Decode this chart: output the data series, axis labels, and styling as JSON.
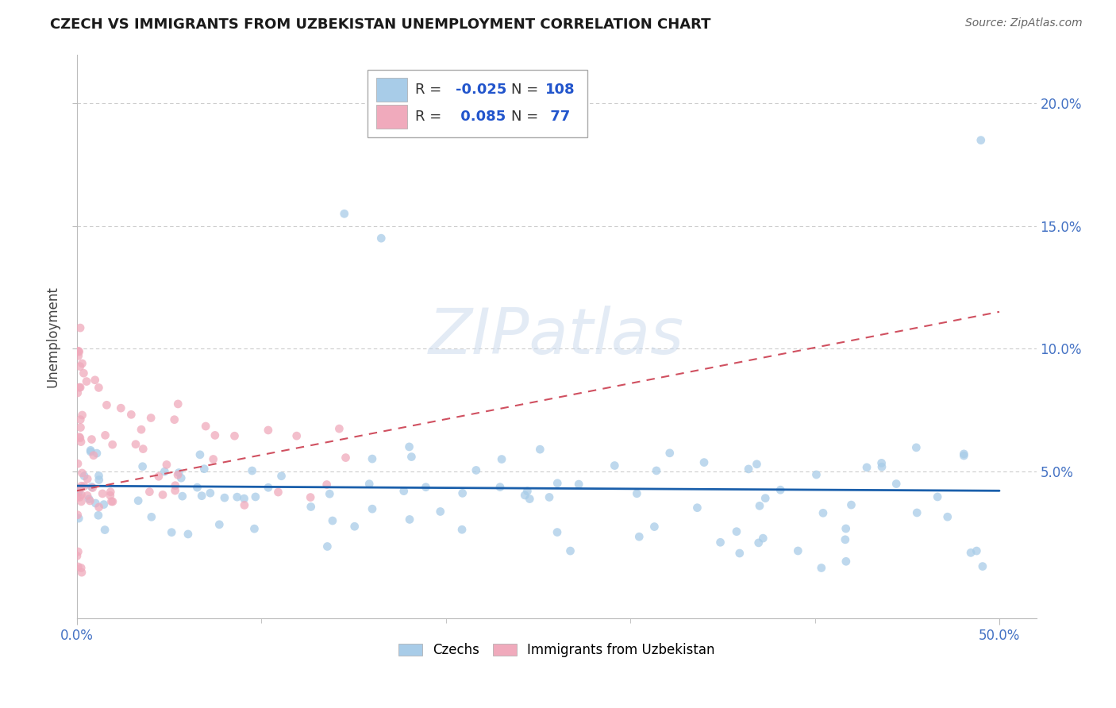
{
  "title": "CZECH VS IMMIGRANTS FROM UZBEKISTAN UNEMPLOYMENT CORRELATION CHART",
  "source": "Source: ZipAtlas.com",
  "ylabel": "Unemployment",
  "xlim": [
    0.0,
    0.52
  ],
  "ylim": [
    -0.01,
    0.22
  ],
  "ytick_vals": [
    0.05,
    0.1,
    0.15,
    0.2
  ],
  "ytick_labels": [
    "5.0%",
    "10.0%",
    "15.0%",
    "20.0%"
  ],
  "xtick_vals": [
    0.0,
    0.5
  ],
  "xtick_labels": [
    "0.0%",
    "50.0%"
  ],
  "czech_color": "#A8CCE8",
  "uzbek_color": "#F0AABC",
  "czech_line_color": "#1A5FAB",
  "uzbek_line_color": "#D05060",
  "R_czech": -0.025,
  "N_czech": 108,
  "R_uzbek": 0.085,
  "N_uzbek": 77,
  "background_color": "#FFFFFF",
  "grid_color": "#CCCCCC",
  "title_color": "#1A1A1A",
  "right_tick_color": "#4472C4",
  "bottom_tick_color": "#4472C4",
  "watermark_color": "#C8D8EC",
  "watermark_alpha": 0.5,
  "czech_line_y0": 0.044,
  "czech_line_y1": 0.042,
  "uzbek_line_y0": 0.042,
  "uzbek_line_y1": 0.115
}
